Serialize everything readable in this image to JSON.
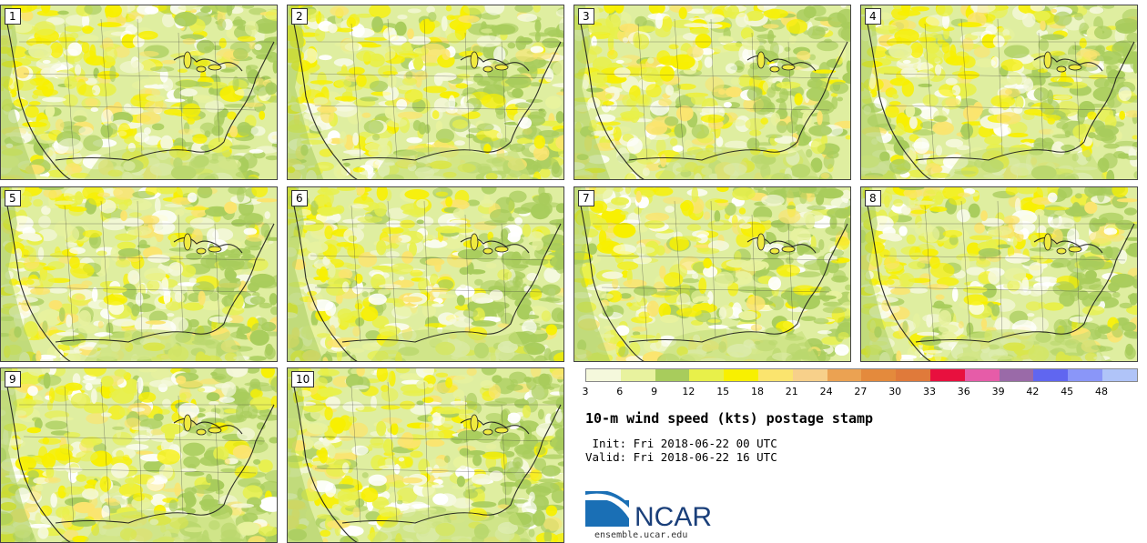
{
  "panels": [
    "1",
    "2",
    "3",
    "4",
    "5",
    "6",
    "7",
    "8",
    "9",
    "10"
  ],
  "colorbar": {
    "ticks": [
      "3",
      "6",
      "9",
      "12",
      "15",
      "18",
      "21",
      "24",
      "27",
      "30",
      "33",
      "36",
      "39",
      "42",
      "45",
      "48"
    ],
    "colors": [
      "#f5f8dc",
      "#e8f29e",
      "#a8cc5c",
      "#e8f04a",
      "#f8f000",
      "#fbe46e",
      "#f7d08a",
      "#eba252",
      "#e48a3c",
      "#e07a3a",
      "#e8103e",
      "#e65ca8",
      "#9a6aa8",
      "#6066f0",
      "#8a96f8",
      "#b0c4f8"
    ]
  },
  "title": "10-m wind speed (kts) postage stamp",
  "init_line": " Init: Fri 2018-06-22 00 UTC",
  "valid_line": "Valid: Fri 2018-06-22 16 UTC",
  "logo_text": "NCAR",
  "url": "ensemble.ucar.edu"
}
